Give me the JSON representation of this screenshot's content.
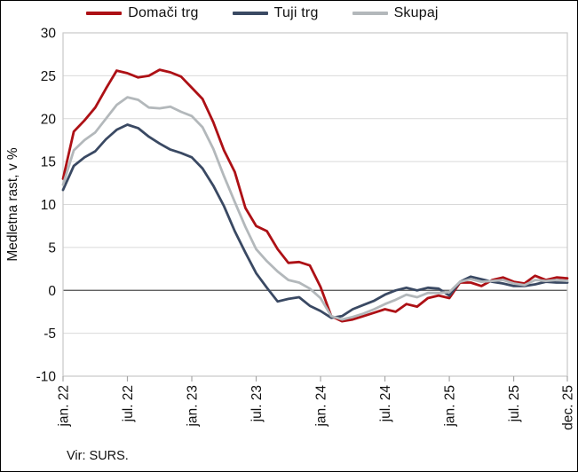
{
  "chart": {
    "legend": [
      {
        "label": "Domači trg",
        "color": "#ad1015"
      },
      {
        "label": "Tuji trg",
        "color": "#3a4963"
      },
      {
        "label": "Skupaj",
        "color": "#b3b8bb"
      }
    ],
    "ylabel": "Medletna rast, v %",
    "source": "Vir: SURS."
  },
  "chart_data": {
    "type": "line",
    "title": "",
    "xlabel": "",
    "ylabel": "Medletna rast, v %",
    "ylim": [
      -10,
      30
    ],
    "ytick_step": 5,
    "ytick_labels": [
      "30",
      "25",
      "20",
      "15",
      "10",
      "5",
      "0",
      "-5",
      "-10"
    ],
    "grid": "horizontal",
    "legend_position": "top",
    "zero_line": true,
    "categories": [
      "jan. 22",
      "feb. 22",
      "mar. 22",
      "apr. 22",
      "maj 22",
      "jun. 22",
      "jul. 22",
      "avg. 22",
      "sep. 22",
      "okt. 22",
      "nov. 22",
      "dec. 22",
      "jan. 23",
      "feb. 23",
      "mar. 23",
      "apr. 23",
      "maj 23",
      "jun. 23",
      "jul. 23",
      "avg. 23",
      "sep. 23",
      "okt. 23",
      "nov. 23",
      "dec. 23",
      "jan. 24",
      "feb. 24",
      "mar. 24",
      "apr. 24",
      "maj 24",
      "jun. 24",
      "jul. 24",
      "avg. 24",
      "sep. 24",
      "okt. 24",
      "nov. 24",
      "dec. 24",
      "jan. 25",
      "feb. 25",
      "mar. 25",
      "apr. 25",
      "maj 25",
      "jun. 25",
      "jul. 25",
      "avg. 25",
      "sep. 25",
      "okt. 25",
      "nov. 25",
      "dec. 25"
    ],
    "x_tick_indices": [
      0,
      6,
      12,
      18,
      24,
      30,
      36,
      42,
      47
    ],
    "x_tick_labels": [
      "jan. 22",
      "jul. 22",
      "jan. 23",
      "jul. 23",
      "jan. 24",
      "jul. 24",
      "jan. 25",
      "jul. 25",
      "dec. 25"
    ],
    "series": [
      {
        "name": "Domači trg",
        "color": "#ad1015",
        "values": [
          13.0,
          18.5,
          19.8,
          21.3,
          23.5,
          25.6,
          25.3,
          24.8,
          25.0,
          25.7,
          25.4,
          24.9,
          23.6,
          22.3,
          19.6,
          16.3,
          13.8,
          9.6,
          7.5,
          6.9,
          4.8,
          3.2,
          3.3,
          2.9,
          0.4,
          -3.0,
          -3.6,
          -3.4,
          -3.0,
          -2.6,
          -2.2,
          -2.5,
          -1.6,
          -1.9,
          -0.9,
          -0.6,
          -0.9,
          0.9,
          0.9,
          0.5,
          1.2,
          1.5,
          1.0,
          0.8,
          1.7,
          1.2,
          1.5,
          1.4
        ]
      },
      {
        "name": "Tuji trg",
        "color": "#3a4963",
        "values": [
          11.7,
          14.5,
          15.5,
          16.2,
          17.6,
          18.7,
          19.3,
          18.9,
          17.9,
          17.1,
          16.4,
          16.0,
          15.5,
          14.2,
          12.2,
          9.8,
          6.9,
          4.4,
          2.0,
          0.3,
          -1.3,
          -1.0,
          -0.8,
          -1.8,
          -2.4,
          -3.2,
          -3.0,
          -2.2,
          -1.7,
          -1.2,
          -0.5,
          0.0,
          0.3,
          0.0,
          0.3,
          0.2,
          -0.6,
          1.0,
          1.6,
          1.3,
          1.0,
          0.8,
          0.5,
          0.5,
          0.7,
          1.0,
          0.9,
          0.9
        ]
      },
      {
        "name": "Skupaj",
        "color": "#b3b8bb",
        "values": [
          12.3,
          16.3,
          17.5,
          18.4,
          20.0,
          21.6,
          22.5,
          22.2,
          21.3,
          21.2,
          21.4,
          20.8,
          20.3,
          19.0,
          16.5,
          13.3,
          10.3,
          7.4,
          4.8,
          3.4,
          2.2,
          1.2,
          0.9,
          0.2,
          -0.9,
          -3.0,
          -3.4,
          -3.1,
          -2.7,
          -2.2,
          -1.6,
          -1.1,
          -0.5,
          -0.8,
          -0.3,
          -0.3,
          -0.2,
          1.0,
          1.3,
          1.0,
          1.1,
          1.2,
          0.8,
          0.6,
          1.2,
          1.1,
          1.2,
          1.1
        ]
      }
    ]
  }
}
